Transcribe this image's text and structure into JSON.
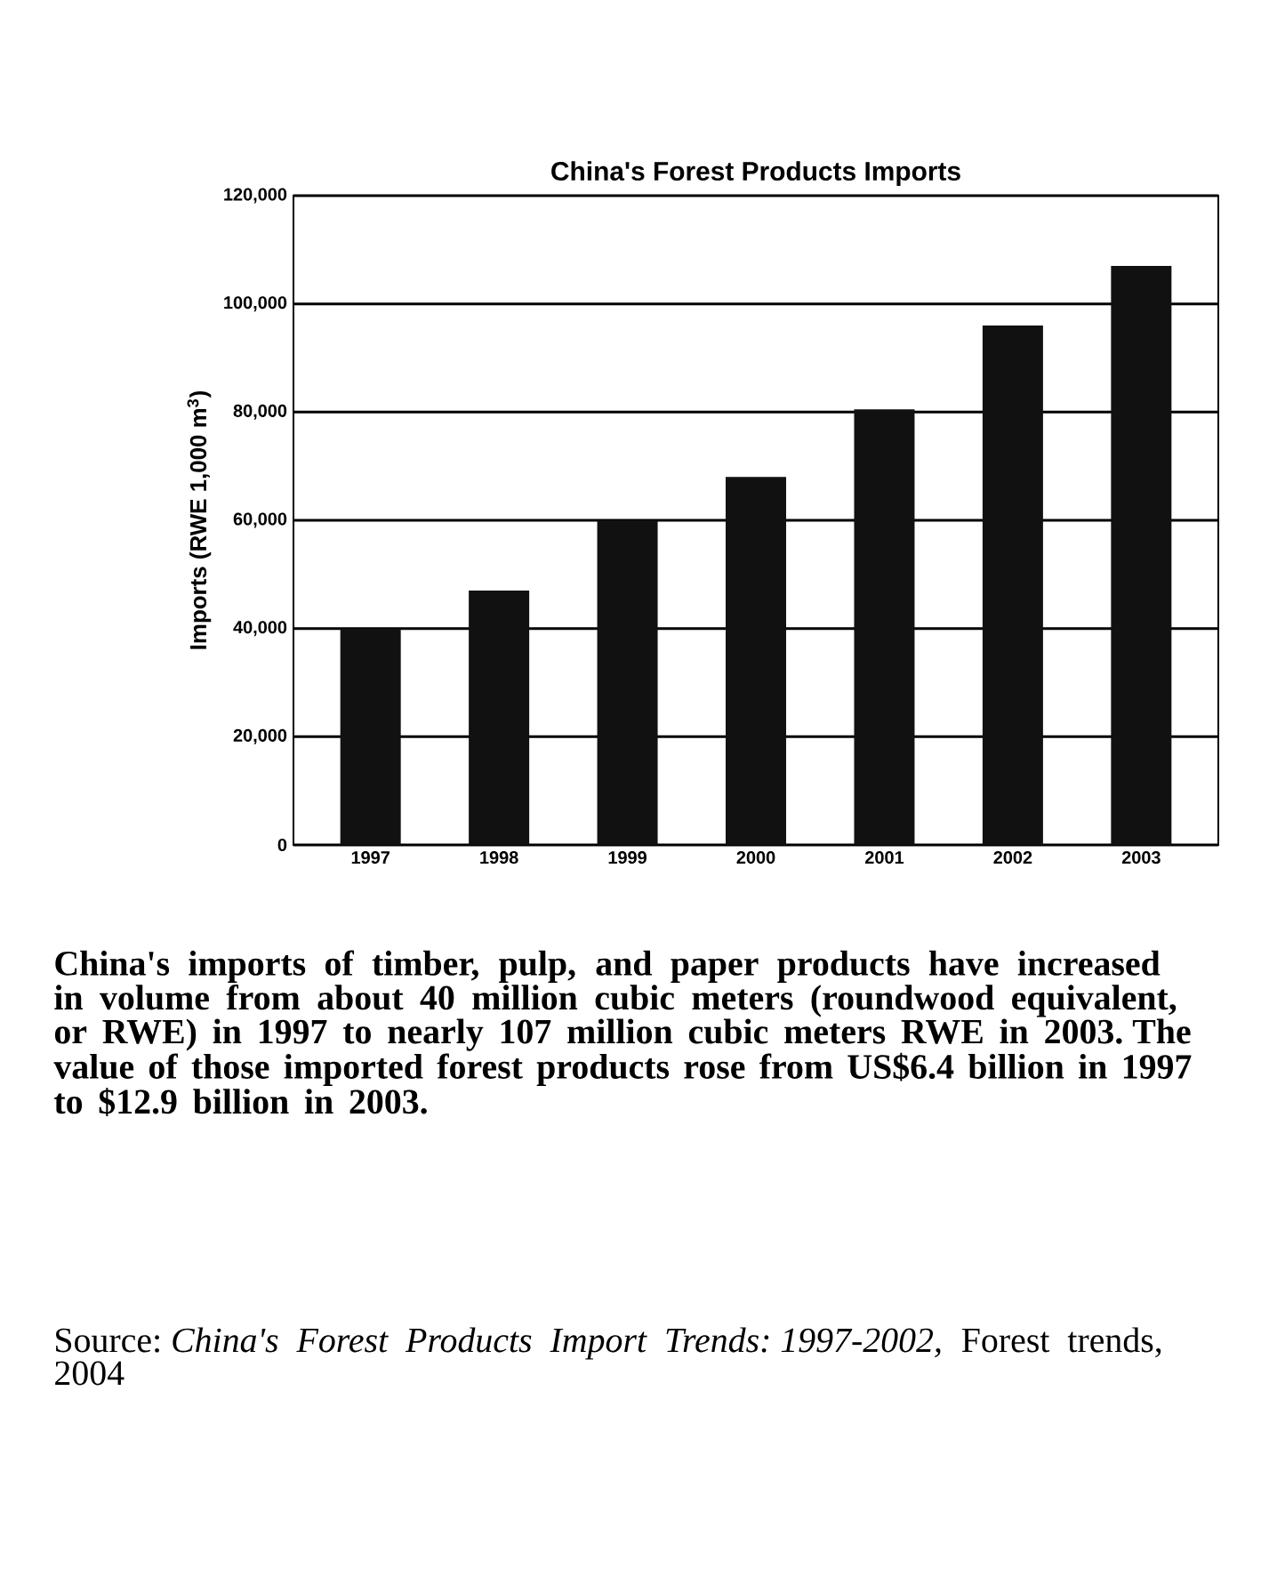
{
  "chart_data": {
    "type": "bar",
    "title": "China's Forest Products Imports",
    "ylabel": "Imports (RWE 1,000 m$^{3}$)",
    "categories": [
      "1997",
      "1998",
      "1999",
      "2000",
      "2001",
      "2002",
      "2003"
    ],
    "values": [
      40000,
      47000,
      60000,
      68000,
      80500,
      96000,
      107000
    ],
    "color": "#111111",
    "ylim": [
      0,
      120000
    ],
    "yticks": [
      {
        "value": 0,
        "label": "0"
      },
      {
        "value": 20000,
        "label": "20,000"
      },
      {
        "value": 40000,
        "label": "40,000"
      },
      {
        "value": 60000,
        "label": "60,000"
      },
      {
        "value": 80000,
        "label": "80,000"
      },
      {
        "value": 100000,
        "label": "100,000"
      },
      {
        "value": 120000,
        "label": "120,000"
      }
    ],
    "grid": "y",
    "annotations": [
      "China's imports of timber, pulp, and paper products have increased in volume from about 40 million cubic meters (roundwood equivalent, or RWE) in 1997 to nearly 107 million cubic meters RWE in 2003. The value of those imported forest products rose from US$6.4 billion in 1997 to $12.9 billion in 2003.",
      "Source: *China's Forest Products Import Trends: 1997-2002,* Forest trends, 2004"
    ]
  }
}
